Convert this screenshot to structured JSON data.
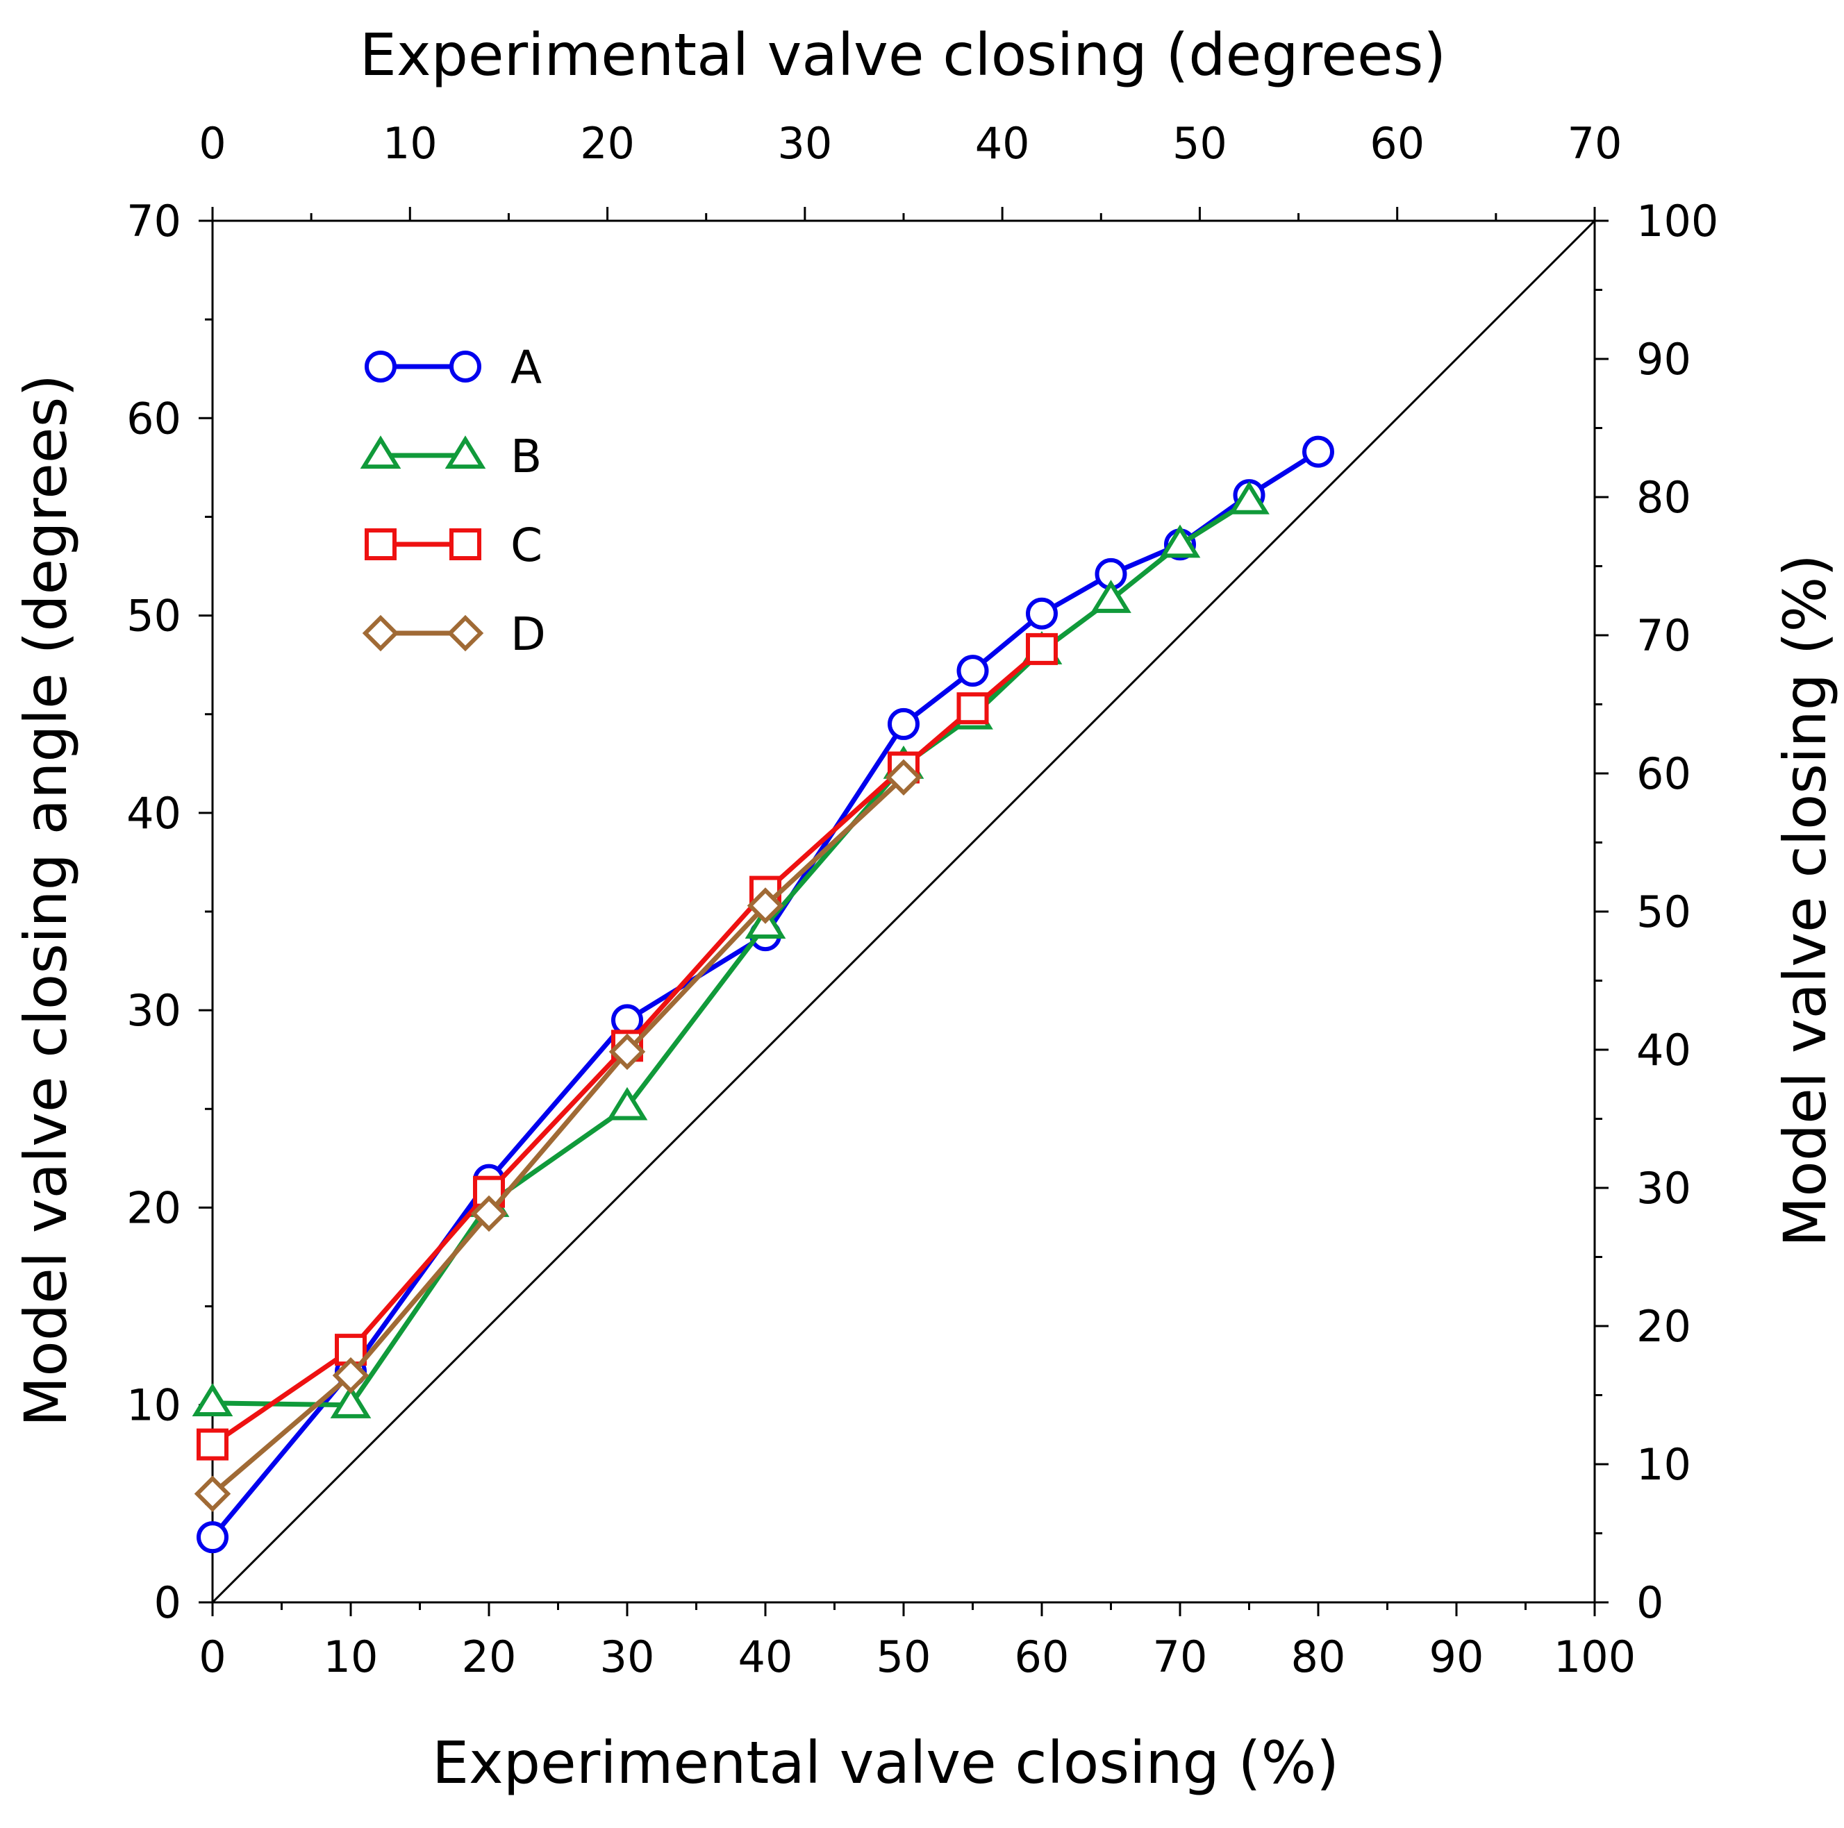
{
  "chart_data": {
    "type": "line",
    "title": "",
    "xlabel": "Experimental valve closing (%)",
    "x2label": "Experimental valve closing (degrees)",
    "ylabel": "Model valve closing angle (degrees)",
    "y2label": "Model valve closing (%)",
    "xlim": [
      0,
      100
    ],
    "x2lim": [
      0,
      70
    ],
    "ylim": [
      0,
      70
    ],
    "y2lim": [
      0,
      100
    ],
    "xticks": [
      "0",
      "10",
      "20",
      "30",
      "40",
      "50",
      "60",
      "70",
      "80",
      "90",
      "100"
    ],
    "x2ticks": [
      "0",
      "10",
      "20",
      "30",
      "40",
      "50",
      "60",
      "70"
    ],
    "yticks": [
      "0",
      "10",
      "20",
      "30",
      "40",
      "50",
      "60",
      "70"
    ],
    "y2ticks": [
      "0",
      "10",
      "20",
      "30",
      "40",
      "50",
      "60",
      "70",
      "80",
      "90",
      "100"
    ],
    "grid": false,
    "legend_position": "top-left",
    "reference_line": "y = x (1:1 diagonal)",
    "series": [
      {
        "name": "A",
        "color": "#0000ee",
        "marker": "circle",
        "x": [
          0,
          10,
          20,
          30,
          40,
          50,
          55,
          60,
          65,
          70,
          75,
          80
        ],
        "y": [
          3.3,
          11.7,
          21.4,
          29.5,
          33.8,
          44.5,
          47.2,
          50.1,
          52.1,
          53.6,
          56.1,
          58.3
        ]
      },
      {
        "name": "B",
        "color": "#109a3a",
        "marker": "triangle",
        "x": [
          0,
          10,
          20,
          30,
          40,
          50,
          55,
          60,
          65,
          70,
          75
        ],
        "y": [
          10.1,
          10.0,
          20.2,
          25.1,
          34.3,
          42.4,
          44.9,
          48.2,
          50.8,
          53.6,
          55.8
        ]
      },
      {
        "name": "C",
        "color": "#ee1111",
        "marker": "square",
        "x": [
          0,
          10,
          20,
          30,
          40,
          50,
          55,
          60
        ],
        "y": [
          8.0,
          12.8,
          20.8,
          28.2,
          36.0,
          42.3,
          45.3,
          48.3
        ]
      },
      {
        "name": "D",
        "color": "#a06a35",
        "marker": "diamond",
        "x": [
          0,
          10,
          20,
          30,
          40,
          50
        ],
        "y": [
          5.5,
          11.5,
          19.7,
          27.9,
          35.3,
          41.8
        ]
      }
    ]
  }
}
